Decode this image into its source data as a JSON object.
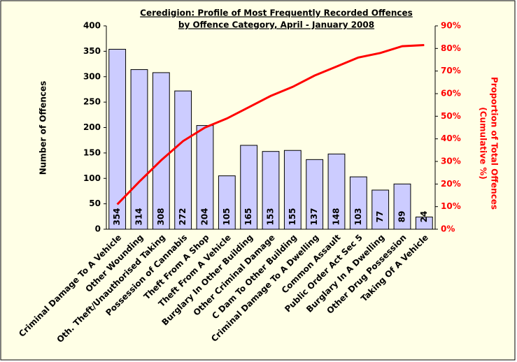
{
  "chart_data": {
    "type": "bar",
    "title": [
      "Ceredigion: Profile of Most Frequently Recorded Offences",
      "by Offence Category, April - January 2008"
    ],
    "ylabel": "Number of Offences",
    "y2label": [
      "Proportion of Total Offences",
      "(Cumulative %)"
    ],
    "categories": [
      "Criminal Damage To A Vehicle",
      "Other Wounding",
      "Oth. Theft/Unauthorised Taking",
      "Possession of Cannabis",
      "Theft From A Shop",
      "Theft From A Vehicle",
      "Burglary In Other Building",
      "Other Criminal Damage",
      "C Dam To Other Building",
      "Criminal Damage To A Dwelling",
      "Common Assault",
      "Public Order Act Sec 5",
      "Burglary In A Dwelling",
      "Other Drug Possession",
      "Taking Of A Vehicle"
    ],
    "series": [
      {
        "type": "bar",
        "color": "#ccccff",
        "values": [
          354,
          314,
          308,
          272,
          204,
          105,
          165,
          153,
          155,
          137,
          148,
          103,
          77,
          89,
          24
        ]
      },
      {
        "type": "line",
        "color": "#ff0000",
        "axis": "y2",
        "values": [
          11,
          21,
          30.5,
          39,
          45,
          49,
          54,
          59,
          63,
          68,
          72,
          76,
          78,
          81,
          81.5
        ]
      }
    ],
    "ylim": [
      0,
      400
    ],
    "yticks": [
      0,
      50,
      100,
      150,
      200,
      250,
      300,
      350,
      400
    ],
    "y2lim": [
      0,
      90
    ],
    "y2ticks": [
      {
        "value": 0,
        "label": "0%"
      },
      {
        "value": 10,
        "label": "10%"
      },
      {
        "value": 20,
        "label": "20%"
      },
      {
        "value": 30,
        "label": "30%"
      },
      {
        "value": 40,
        "label": "40%"
      },
      {
        "value": 50,
        "label": "50%"
      },
      {
        "value": 60,
        "label": "60%"
      },
      {
        "value": 70,
        "label": "70%"
      },
      {
        "value": 80,
        "label": "80%"
      },
      {
        "value": 90,
        "label": "90%"
      }
    ],
    "grid": false
  }
}
